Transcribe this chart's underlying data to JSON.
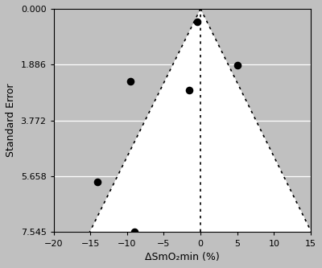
{
  "points_x": [
    -14.0,
    -9.5,
    -1.5,
    -0.5,
    5.0,
    -9.0
  ],
  "points_y": [
    5.85,
    2.45,
    2.75,
    0.45,
    1.9,
    7.52
  ],
  "funnel_apex_x": 0.0,
  "funnel_apex_y": 0.0,
  "funnel_base_y": 7.545,
  "funnel_halfwidth_at_base": 15.09,
  "vline_x": 0.0,
  "xlim": [
    -20,
    15
  ],
  "ylim_max": 7.545,
  "yticks": [
    0,
    1.886,
    3.772,
    5.658,
    7.545
  ],
  "xticks": [
    -20,
    -15,
    -10,
    -5,
    0,
    5,
    10,
    15
  ],
  "xlabel": "ΔSmO₂min (%)",
  "ylabel": "Standard Error",
  "outer_bg_color": "#c0c0c0",
  "plot_bg_color": "#ffffff",
  "funnel_color": "#ffffff",
  "grid_color": "#d8d8d8",
  "dot_color": "#000000",
  "dot_size": 35,
  "font_size_ticks": 8,
  "font_size_label": 9
}
